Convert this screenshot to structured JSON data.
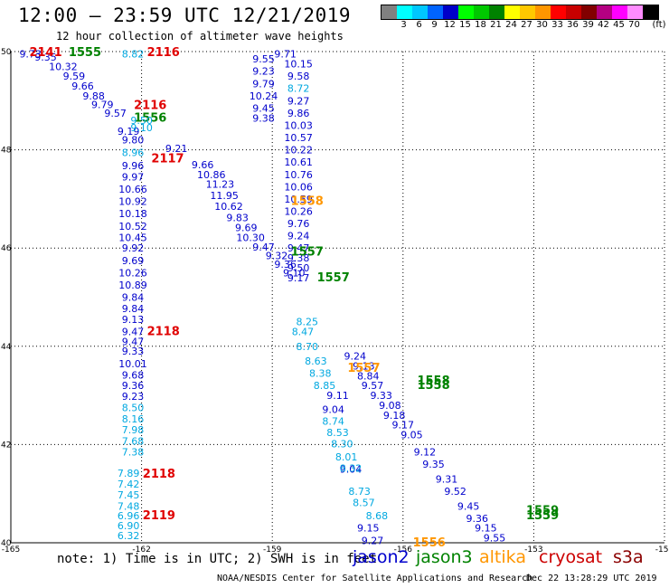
{
  "header": {
    "title": "12:00 – 23:59 UTC 12/21/2019",
    "subtitle": "12 hour collection of altimeter wave heights"
  },
  "scale": {
    "unit_label": "(ft)",
    "colors": [
      "#808080",
      "#00ffff",
      "#00c8ff",
      "#0064ff",
      "#0000c8",
      "#00ff00",
      "#00c800",
      "#008200",
      "#ffff00",
      "#ffc800",
      "#ff9600",
      "#ff0000",
      "#c80000",
      "#820000",
      "#b40082",
      "#ff00ff",
      "#ff8cff",
      "#000000"
    ],
    "labels": [
      "3",
      "6",
      "9",
      "12",
      "15",
      "18",
      "21",
      "24",
      "27",
      "30",
      "33",
      "36",
      "39",
      "42",
      "45",
      "70"
    ]
  },
  "map": {
    "x_ticks": [
      "-165",
      "-162",
      "-159",
      "-156",
      "-153",
      "-150"
    ],
    "y_ticks": [
      "50",
      "48",
      "46",
      "44",
      "42",
      "40"
    ],
    "x_range": [
      -165,
      -150
    ],
    "y_range": [
      40,
      50
    ]
  },
  "chart_data": {
    "type": "scatter",
    "x_axis": "longitude (degrees)",
    "y_axis": "latitude (degrees)",
    "xlim": [
      -165,
      -150
    ],
    "ylim": [
      40,
      50
    ],
    "grid": true,
    "series": [
      {
        "name": "jason2",
        "color": "#0000cc",
        "points": [
          {
            "x": -164.2,
            "y": 49.89,
            "v": "9.35"
          },
          {
            "x": -163.8,
            "y": 49.7,
            "v": "10.32"
          },
          {
            "x": -163.55,
            "y": 49.5,
            "v": "9.59"
          },
          {
            "x": -163.35,
            "y": 49.3,
            "v": "9.66"
          },
          {
            "x": -163.1,
            "y": 49.1,
            "v": "9.88"
          },
          {
            "x": -162.9,
            "y": 48.92,
            "v": "9.79"
          },
          {
            "x": -162.6,
            "y": 48.75,
            "v": "9.57"
          },
          {
            "x": -162.3,
            "y": 48.38,
            "v": "9.19"
          },
          {
            "x": -162.2,
            "y": 48.2,
            "v": "9.80"
          },
          {
            "x": -162.2,
            "y": 47.68,
            "v": "9.96"
          },
          {
            "x": -162.2,
            "y": 47.45,
            "v": "9.97"
          },
          {
            "x": -162.2,
            "y": 47.2,
            "v": "10.66"
          },
          {
            "x": -162.2,
            "y": 46.95,
            "v": "10.92"
          },
          {
            "x": -162.2,
            "y": 46.7,
            "v": "10.18"
          },
          {
            "x": -162.2,
            "y": 46.45,
            "v": "10.52"
          },
          {
            "x": -162.2,
            "y": 46.22,
            "v": "10.45"
          },
          {
            "x": -162.2,
            "y": 46.0,
            "v": "9.92"
          },
          {
            "x": -162.2,
            "y": 45.75,
            "v": "9.69"
          },
          {
            "x": -162.2,
            "y": 45.5,
            "v": "10.26"
          },
          {
            "x": -162.2,
            "y": 45.25,
            "v": "10.89"
          },
          {
            "x": -162.2,
            "y": 45.0,
            "v": "9.84"
          },
          {
            "x": -162.2,
            "y": 44.77,
            "v": "9.84"
          },
          {
            "x": -162.2,
            "y": 44.55,
            "v": "9.13"
          },
          {
            "x": -162.2,
            "y": 44.3,
            "v": "9.47"
          },
          {
            "x": -162.2,
            "y": 44.1,
            "v": "9.47"
          },
          {
            "x": -162.2,
            "y": 43.9,
            "v": "9.33"
          },
          {
            "x": -162.2,
            "y": 43.65,
            "v": "10.01"
          },
          {
            "x": -162.2,
            "y": 43.42,
            "v": "9.68"
          },
          {
            "x": -162.2,
            "y": 43.2,
            "v": "9.36"
          },
          {
            "x": -162.2,
            "y": 42.98,
            "v": "9.23"
          },
          {
            "x": -159.2,
            "y": 49.85,
            "v": "9.55"
          },
          {
            "x": -159.2,
            "y": 49.6,
            "v": "9.23"
          },
          {
            "x": -159.2,
            "y": 49.35,
            "v": "9.79"
          },
          {
            "x": -159.2,
            "y": 49.1,
            "v": "10.24"
          },
          {
            "x": -159.2,
            "y": 48.85,
            "v": "9.45"
          },
          {
            "x": -159.2,
            "y": 48.65,
            "v": "9.38"
          },
          {
            "x": -158.7,
            "y": 49.95,
            "v": "9.71"
          },
          {
            "x": -158.4,
            "y": 49.75,
            "v": "10.15"
          },
          {
            "x": -158.4,
            "y": 49.5,
            "v": "9.58"
          },
          {
            "x": -158.4,
            "y": 49.0,
            "v": "9.27"
          },
          {
            "x": -158.4,
            "y": 48.75,
            "v": "9.86"
          },
          {
            "x": -158.4,
            "y": 48.5,
            "v": "10.03"
          },
          {
            "x": -158.4,
            "y": 48.25,
            "v": "10.57"
          },
          {
            "x": -158.4,
            "y": 48.0,
            "v": "10.22"
          },
          {
            "x": -158.4,
            "y": 47.75,
            "v": "10.61"
          },
          {
            "x": -158.4,
            "y": 47.5,
            "v": "10.76"
          },
          {
            "x": -158.4,
            "y": 47.25,
            "v": "10.06"
          },
          {
            "x": -158.4,
            "y": 47.0,
            "v": "10.59"
          },
          {
            "x": -158.4,
            "y": 46.75,
            "v": "10.26"
          },
          {
            "x": -158.4,
            "y": 46.5,
            "v": "9.76"
          },
          {
            "x": -158.4,
            "y": 46.25,
            "v": "9.24"
          },
          {
            "x": -158.4,
            "y": 46.0,
            "v": "9.47"
          },
          {
            "x": -158.4,
            "y": 45.8,
            "v": "9.38"
          },
          {
            "x": -158.4,
            "y": 45.6,
            "v": "9.50"
          },
          {
            "x": -158.4,
            "y": 45.4,
            "v": "9.17"
          },
          {
            "x": -161.2,
            "y": 48.03,
            "v": "9.21"
          },
          {
            "x": -160.6,
            "y": 47.7,
            "v": "9.66"
          },
          {
            "x": -160.4,
            "y": 47.5,
            "v": "10.86"
          },
          {
            "x": -160.2,
            "y": 47.3,
            "v": "11.23"
          },
          {
            "x": -160.1,
            "y": 47.07,
            "v": "11.95"
          },
          {
            "x": -160.0,
            "y": 46.85,
            "v": "10.62"
          },
          {
            "x": -159.8,
            "y": 46.62,
            "v": "9.83"
          },
          {
            "x": -159.6,
            "y": 46.42,
            "v": "9.69"
          },
          {
            "x": -159.5,
            "y": 46.22,
            "v": "10.30"
          },
          {
            "x": -159.2,
            "y": 46.02,
            "v": "9.47"
          },
          {
            "x": -158.9,
            "y": 45.85,
            "v": "9.32"
          },
          {
            "x": -158.7,
            "y": 45.67,
            "v": "9.36"
          },
          {
            "x": -158.5,
            "y": 45.5,
            "v": "9.10"
          },
          {
            "x": -157.1,
            "y": 43.8,
            "v": "9.24"
          },
          {
            "x": -156.9,
            "y": 43.6,
            "v": "9.13"
          },
          {
            "x": -156.8,
            "y": 43.4,
            "v": "8.84"
          },
          {
            "x": -156.7,
            "y": 43.2,
            "v": "9.57"
          },
          {
            "x": -156.5,
            "y": 43.0,
            "v": "9.33"
          },
          {
            "x": -156.3,
            "y": 42.8,
            "v": "9.08"
          },
          {
            "x": -156.2,
            "y": 42.6,
            "v": "9.18"
          },
          {
            "x": -156.0,
            "y": 42.4,
            "v": "9.17"
          },
          {
            "x": -155.8,
            "y": 42.2,
            "v": "9.05"
          },
          {
            "x": -155.5,
            "y": 41.85,
            "v": "9.12"
          },
          {
            "x": -155.3,
            "y": 41.6,
            "v": "9.35"
          },
          {
            "x": -155.0,
            "y": 41.3,
            "v": "9.31"
          },
          {
            "x": -154.8,
            "y": 41.05,
            "v": "9.52"
          },
          {
            "x": -154.5,
            "y": 40.75,
            "v": "9.45"
          },
          {
            "x": -154.3,
            "y": 40.5,
            "v": "9.36"
          },
          {
            "x": -154.1,
            "y": 40.3,
            "v": "9.15"
          },
          {
            "x": -153.9,
            "y": 40.1,
            "v": "9.55"
          },
          {
            "x": -157.5,
            "y": 43.0,
            "v": "9.11"
          },
          {
            "x": -157.6,
            "y": 42.72,
            "v": "9.04"
          },
          {
            "x": -157.2,
            "y": 41.5,
            "v": "9.04"
          },
          {
            "x": -156.8,
            "y": 40.3,
            "v": "9.15"
          },
          {
            "x": -156.7,
            "y": 40.05,
            "v": "9.27"
          },
          {
            "x": -164.55,
            "y": 49.95,
            "v": "9.73"
          }
        ]
      },
      {
        "name": "jason3",
        "color": "#008200",
        "points": [
          {
            "x": -163.3,
            "y": 49.98,
            "v": "1555"
          },
          {
            "x": -161.8,
            "y": 48.65,
            "v": "1556"
          },
          {
            "x": -158.2,
            "y": 45.92,
            "v": "1557"
          },
          {
            "x": -157.6,
            "y": 45.4,
            "v": "1557"
          },
          {
            "x": -155.3,
            "y": 43.3,
            "v": "1558"
          },
          {
            "x": -155.3,
            "y": 43.2,
            "v": "1558"
          },
          {
            "x": -152.8,
            "y": 40.65,
            "v": "1559"
          },
          {
            "x": -152.8,
            "y": 40.55,
            "v": "1559"
          }
        ]
      },
      {
        "name": "altika",
        "color": "#ff9600",
        "points": [
          {
            "x": -158.2,
            "y": 46.95,
            "v": "1558"
          },
          {
            "x": -156.9,
            "y": 43.55,
            "v": "1557"
          },
          {
            "x": -155.4,
            "y": 40.0,
            "v": "1556"
          }
        ]
      },
      {
        "name": "cryosat",
        "color": "#e00000",
        "points": [
          {
            "x": -164.2,
            "y": 49.98,
            "v": "2141"
          },
          {
            "x": -161.5,
            "y": 49.98,
            "v": "2116"
          },
          {
            "x": -161.8,
            "y": 48.9,
            "v": "2116"
          },
          {
            "x": -161.4,
            "y": 47.82,
            "v": "2117"
          },
          {
            "x": -161.5,
            "y": 44.3,
            "v": "2118"
          },
          {
            "x": -161.6,
            "y": 41.4,
            "v": "2118"
          },
          {
            "x": -161.6,
            "y": 40.55,
            "v": "2119"
          }
        ]
      },
      {
        "name": "s3a",
        "color": "#00a8e0",
        "points": [
          {
            "x": -162.2,
            "y": 49.95,
            "v": "8.82"
          },
          {
            "x": -158.4,
            "y": 49.25,
            "v": "8.72"
          },
          {
            "x": -162.0,
            "y": 48.6,
            "v": "9.50"
          },
          {
            "x": -162.0,
            "y": 48.45,
            "v": "9.10"
          },
          {
            "x": -162.2,
            "y": 47.95,
            "v": "8.96"
          },
          {
            "x": -162.2,
            "y": 42.75,
            "v": "8.50"
          },
          {
            "x": -162.2,
            "y": 42.52,
            "v": "8.16"
          },
          {
            "x": -162.2,
            "y": 42.3,
            "v": "7.98"
          },
          {
            "x": -162.2,
            "y": 42.07,
            "v": "7.68"
          },
          {
            "x": -162.2,
            "y": 41.85,
            "v": "7.38"
          },
          {
            "x": -162.3,
            "y": 41.42,
            "v": "7.89"
          },
          {
            "x": -162.3,
            "y": 41.2,
            "v": "7.42"
          },
          {
            "x": -162.3,
            "y": 40.98,
            "v": "7.45"
          },
          {
            "x": -162.3,
            "y": 40.75,
            "v": "7.48"
          },
          {
            "x": -162.3,
            "y": 40.55,
            "v": "6.96"
          },
          {
            "x": -162.3,
            "y": 40.35,
            "v": "6.90"
          },
          {
            "x": -162.3,
            "y": 40.15,
            "v": "6.32"
          },
          {
            "x": -158.2,
            "y": 44.5,
            "v": "8.25"
          },
          {
            "x": -158.3,
            "y": 44.3,
            "v": "8.47"
          },
          {
            "x": -158.2,
            "y": 44.0,
            "v": "8.70"
          },
          {
            "x": -158.0,
            "y": 43.7,
            "v": "8.63"
          },
          {
            "x": -157.9,
            "y": 43.45,
            "v": "8.38"
          },
          {
            "x": -157.8,
            "y": 43.2,
            "v": "8.85"
          },
          {
            "x": -157.6,
            "y": 42.48,
            "v": "8.74"
          },
          {
            "x": -157.5,
            "y": 42.25,
            "v": "8.53"
          },
          {
            "x": -157.4,
            "y": 42.02,
            "v": "8.30"
          },
          {
            "x": -157.3,
            "y": 41.75,
            "v": "8.01"
          },
          {
            "x": -157.2,
            "y": 41.52,
            "v": "8.32"
          },
          {
            "x": -157.0,
            "y": 41.05,
            "v": "8.73"
          },
          {
            "x": -156.9,
            "y": 40.82,
            "v": "8.57"
          },
          {
            "x": -156.6,
            "y": 40.55,
            "v": "8.68"
          }
        ]
      }
    ]
  },
  "note": {
    "text": "note: 1) Time is in UTC; 2) SWH is in feet"
  },
  "legend": {
    "items": [
      {
        "label": "jason2",
        "color": "#0000cc"
      },
      {
        "label": "jason3",
        "color": "#008200"
      },
      {
        "label": "altika",
        "color": "#ff9600"
      },
      {
        "label": "cryosat",
        "color": "#cc0000"
      },
      {
        "label": "s3a",
        "color": "#8b0000"
      }
    ]
  },
  "footer": {
    "credit": "NOAA/NESDIS Center for Satellite Applications and Research",
    "date": "Dec 22 13:28:29 UTC 2019"
  }
}
